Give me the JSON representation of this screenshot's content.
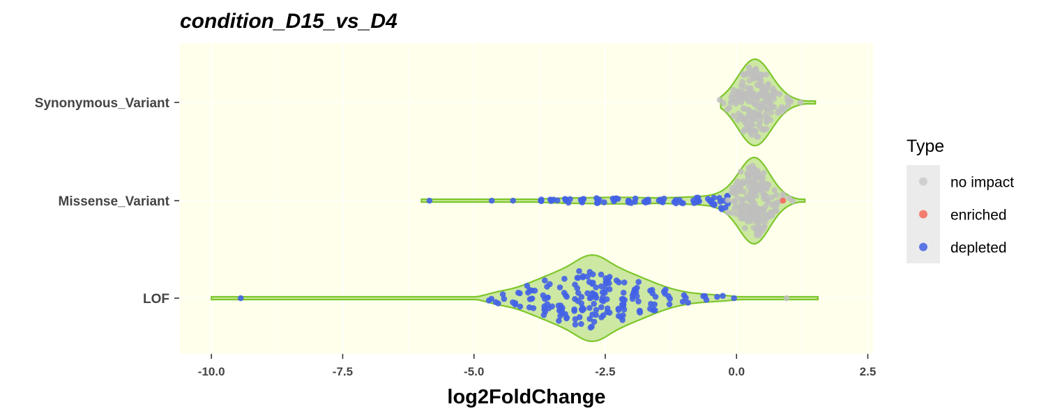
{
  "chart_data": {
    "type": "violin-beeswarm",
    "title": "condition_D15_vs_D4",
    "xlabel": "log2FoldChange",
    "ylabel": "",
    "xlim": [
      -10.6,
      2.6
    ],
    "x_ticks": [
      -10.0,
      -7.5,
      -5.0,
      -2.5,
      0.0,
      2.5
    ],
    "x_tick_labels": [
      "-10.0",
      "-7.5",
      "-5.0",
      "-2.5",
      "0.0",
      "2.5"
    ],
    "categories": [
      "Synonymous_Variant",
      "Missense_Variant",
      "LOF"
    ],
    "panel_background": "#FFFFEC",
    "violin_color": "#7DC62B",
    "violin_fill": "#CDE8A2",
    "legend": {
      "title": "Type",
      "position": "right",
      "entries": [
        {
          "label": "no impact",
          "color": "#BEBEBE"
        },
        {
          "label": "enriched",
          "color": "#F8685A"
        },
        {
          "label": "depleted",
          "color": "#4462E6"
        }
      ]
    },
    "groups": [
      {
        "category": "Synonymous_Variant",
        "range": [
          -0.3,
          1.5
        ],
        "mode": 0.35,
        "points": [
          {
            "x": -0.25,
            "n": 2,
            "type": "no impact"
          },
          {
            "x": -0.1,
            "n": 6,
            "type": "no impact"
          },
          {
            "x": 0.0,
            "n": 10,
            "type": "no impact"
          },
          {
            "x": 0.1,
            "n": 16,
            "type": "no impact"
          },
          {
            "x": 0.2,
            "n": 24,
            "type": "no impact"
          },
          {
            "x": 0.3,
            "n": 30,
            "type": "no impact"
          },
          {
            "x": 0.4,
            "n": 30,
            "type": "no impact"
          },
          {
            "x": 0.5,
            "n": 24,
            "type": "no impact"
          },
          {
            "x": 0.6,
            "n": 16,
            "type": "no impact"
          },
          {
            "x": 0.7,
            "n": 10,
            "type": "no impact"
          },
          {
            "x": 0.8,
            "n": 6,
            "type": "no impact"
          },
          {
            "x": 0.95,
            "n": 4,
            "type": "no impact"
          },
          {
            "x": 1.1,
            "n": 2,
            "type": "no impact"
          },
          {
            "x": 1.3,
            "n": 1,
            "type": "no impact"
          }
        ]
      },
      {
        "category": "Missense_Variant",
        "range": [
          -6.0,
          1.3
        ],
        "mode": 0.35,
        "points": [
          {
            "x": -5.85,
            "n": 1,
            "type": "depleted"
          },
          {
            "x": -4.75,
            "n": 1,
            "type": "depleted"
          },
          {
            "x": -4.25,
            "n": 1,
            "type": "depleted"
          },
          {
            "x": -3.8,
            "n": 3,
            "type": "depleted"
          },
          {
            "x": -3.5,
            "n": 4,
            "type": "depleted"
          },
          {
            "x": -3.2,
            "n": 5,
            "type": "depleted"
          },
          {
            "x": -2.9,
            "n": 5,
            "type": "depleted"
          },
          {
            "x": -2.6,
            "n": 6,
            "type": "depleted"
          },
          {
            "x": -2.3,
            "n": 6,
            "type": "depleted"
          },
          {
            "x": -2.0,
            "n": 6,
            "type": "depleted"
          },
          {
            "x": -1.7,
            "n": 5,
            "type": "depleted"
          },
          {
            "x": -1.4,
            "n": 5,
            "type": "depleted"
          },
          {
            "x": -1.1,
            "n": 6,
            "type": "depleted"
          },
          {
            "x": -0.8,
            "n": 7,
            "type": "depleted"
          },
          {
            "x": -0.5,
            "n": 8,
            "type": "depleted"
          },
          {
            "x": -0.25,
            "n": 9,
            "type": "depleted"
          },
          {
            "x": -0.1,
            "n": 10,
            "type": "no impact"
          },
          {
            "x": 0.05,
            "n": 16,
            "type": "no impact"
          },
          {
            "x": 0.15,
            "n": 24,
            "type": "no impact"
          },
          {
            "x": 0.25,
            "n": 34,
            "type": "no impact"
          },
          {
            "x": 0.35,
            "n": 40,
            "type": "no impact"
          },
          {
            "x": 0.45,
            "n": 34,
            "type": "no impact"
          },
          {
            "x": 0.55,
            "n": 24,
            "type": "no impact"
          },
          {
            "x": 0.7,
            "n": 12,
            "type": "no impact"
          },
          {
            "x": 0.85,
            "n": 5,
            "type": "no impact"
          },
          {
            "x": 0.92,
            "n": 1,
            "type": "enriched"
          },
          {
            "x": 1.05,
            "n": 2,
            "type": "no impact"
          }
        ]
      },
      {
        "category": "LOF",
        "range": [
          -10.0,
          1.55
        ],
        "mode": -2.75,
        "points": [
          {
            "x": -9.45,
            "n": 1,
            "type": "depleted"
          },
          {
            "x": -4.7,
            "n": 2,
            "type": "depleted"
          },
          {
            "x": -4.5,
            "n": 4,
            "type": "depleted"
          },
          {
            "x": -4.2,
            "n": 6,
            "type": "depleted"
          },
          {
            "x": -3.9,
            "n": 10,
            "type": "depleted"
          },
          {
            "x": -3.6,
            "n": 14,
            "type": "depleted"
          },
          {
            "x": -3.3,
            "n": 18,
            "type": "depleted"
          },
          {
            "x": -3.0,
            "n": 22,
            "type": "depleted"
          },
          {
            "x": -2.75,
            "n": 24,
            "type": "depleted"
          },
          {
            "x": -2.5,
            "n": 22,
            "type": "depleted"
          },
          {
            "x": -2.2,
            "n": 18,
            "type": "depleted"
          },
          {
            "x": -1.9,
            "n": 14,
            "type": "depleted"
          },
          {
            "x": -1.6,
            "n": 10,
            "type": "depleted"
          },
          {
            "x": -1.3,
            "n": 6,
            "type": "depleted"
          },
          {
            "x": -1.0,
            "n": 4,
            "type": "depleted"
          },
          {
            "x": -0.65,
            "n": 3,
            "type": "depleted"
          },
          {
            "x": -0.3,
            "n": 2,
            "type": "depleted"
          },
          {
            "x": -0.05,
            "n": 1,
            "type": "depleted"
          },
          {
            "x": 0.95,
            "n": 1,
            "type": "no impact"
          }
        ]
      }
    ]
  }
}
